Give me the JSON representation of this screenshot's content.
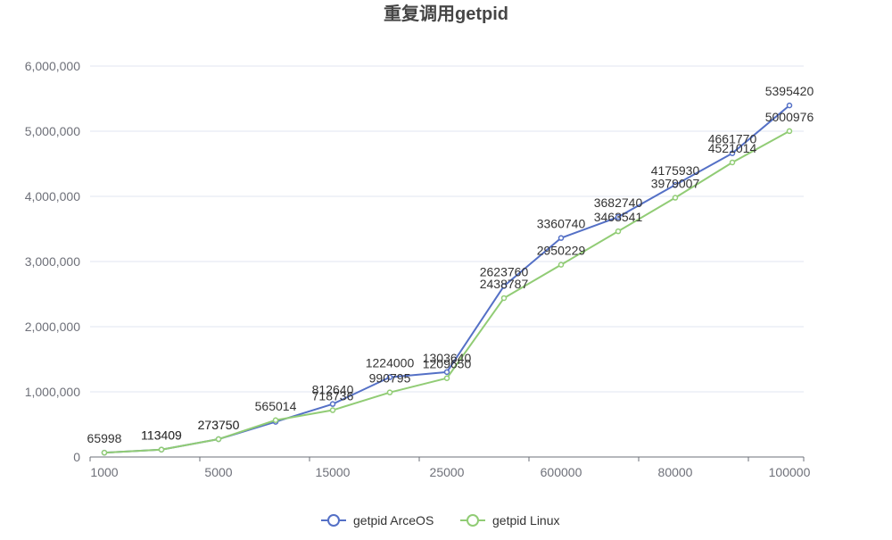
{
  "chart_data": {
    "type": "line",
    "title": "重复调用getpid",
    "xlabel": "",
    "ylabel": "",
    "categories": [
      "1000",
      "",
      "5000",
      "",
      "15000",
      "",
      "25000",
      "",
      "600000",
      "",
      "80000",
      "",
      "100000"
    ],
    "ylim": [
      0,
      6000000
    ],
    "y_ticks": [
      0,
      1000000,
      2000000,
      3000000,
      4000000,
      5000000,
      6000000
    ],
    "y_tick_labels": [
      "0",
      "1,000,000",
      "2,000,000",
      "3,000,000",
      "4,000,000",
      "5,000,000",
      "6,000,000"
    ],
    "grid": true,
    "legend_position": "bottom-center",
    "series": [
      {
        "name": "getpid ArceOS",
        "color": "#5470c6",
        "values": [
          65998,
          113409,
          273750,
          540000,
          812640,
          1224000,
          1303640,
          2623760,
          3360740,
          3682740,
          4175930,
          4661770,
          5395420
        ],
        "labels": [
          "65998",
          "113409",
          "273750",
          "",
          "812640",
          "1224000",
          "1303640",
          "2623760",
          "3360740",
          "3682740",
          "4175930",
          "4661770",
          "5395420"
        ]
      },
      {
        "name": "getpid Linux",
        "color": "#91cc75",
        "values": [
          65998,
          113409,
          273750,
          565014,
          718736,
          990795,
          1209650,
          2438787,
          2950229,
          3463541,
          3979007,
          4521014,
          5000976
        ],
        "labels": [
          "",
          "113409",
          "273750",
          "565014",
          "718736",
          "990795",
          "1209650",
          "2438787",
          "2950229",
          "3463541",
          "3979007",
          "4521014",
          "5000976"
        ]
      }
    ]
  }
}
